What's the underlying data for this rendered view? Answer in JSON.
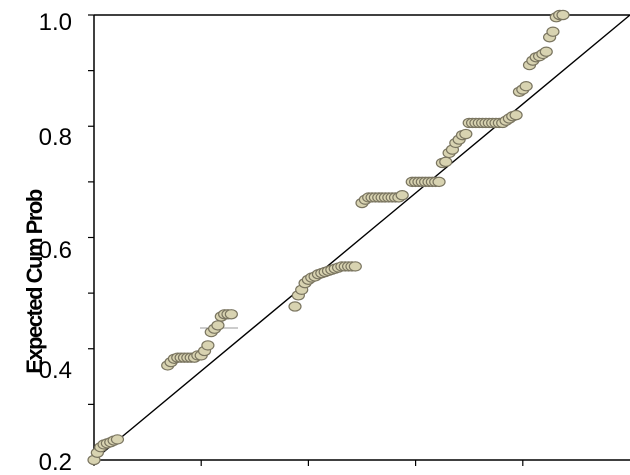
{
  "chart_data": {
    "type": "scatter",
    "title": "",
    "xlabel": "",
    "ylabel": "Expected Cum Prob",
    "ylim": [
      0.2,
      1.0
    ],
    "xlim": [
      0.2,
      1.0
    ],
    "y_ticks": [
      "0.2",
      "0.4",
      "0.6",
      "0.8",
      "1.0"
    ],
    "reference_line": {
      "from": [
        0.2,
        0.2
      ],
      "to": [
        1.0,
        1.0
      ]
    },
    "colors": {
      "point_fill": "#d8d3b1",
      "point_stroke": "#7a7560",
      "line": "#000000"
    },
    "points": [
      [
        0.2,
        0.2
      ],
      [
        0.205,
        0.213
      ],
      [
        0.21,
        0.223
      ],
      [
        0.215,
        0.228
      ],
      [
        0.22,
        0.23
      ],
      [
        0.225,
        0.232
      ],
      [
        0.23,
        0.235
      ],
      [
        0.235,
        0.237
      ],
      [
        0.31,
        0.37
      ],
      [
        0.315,
        0.376
      ],
      [
        0.32,
        0.382
      ],
      [
        0.325,
        0.384
      ],
      [
        0.33,
        0.384
      ],
      [
        0.335,
        0.384
      ],
      [
        0.34,
        0.384
      ],
      [
        0.345,
        0.384
      ],
      [
        0.35,
        0.384
      ],
      [
        0.355,
        0.388
      ],
      [
        0.36,
        0.388
      ],
      [
        0.365,
        0.396
      ],
      [
        0.37,
        0.406
      ],
      [
        0.375,
        0.43
      ],
      [
        0.38,
        0.436
      ],
      [
        0.385,
        0.442
      ],
      [
        0.39,
        0.458
      ],
      [
        0.395,
        0.462
      ],
      [
        0.4,
        0.462
      ],
      [
        0.405,
        0.462
      ],
      [
        0.5,
        0.476
      ],
      [
        0.505,
        0.496
      ],
      [
        0.51,
        0.506
      ],
      [
        0.515,
        0.518
      ],
      [
        0.52,
        0.524
      ],
      [
        0.525,
        0.528
      ],
      [
        0.53,
        0.53
      ],
      [
        0.535,
        0.534
      ],
      [
        0.54,
        0.536
      ],
      [
        0.545,
        0.538
      ],
      [
        0.55,
        0.54
      ],
      [
        0.555,
        0.542
      ],
      [
        0.56,
        0.544
      ],
      [
        0.565,
        0.546
      ],
      [
        0.57,
        0.548
      ],
      [
        0.575,
        0.548
      ],
      [
        0.58,
        0.548
      ],
      [
        0.585,
        0.548
      ],
      [
        0.59,
        0.548
      ],
      [
        0.6,
        0.662
      ],
      [
        0.605,
        0.668
      ],
      [
        0.61,
        0.672
      ],
      [
        0.615,
        0.672
      ],
      [
        0.62,
        0.672
      ],
      [
        0.625,
        0.672
      ],
      [
        0.63,
        0.672
      ],
      [
        0.635,
        0.672
      ],
      [
        0.64,
        0.672
      ],
      [
        0.645,
        0.672
      ],
      [
        0.65,
        0.672
      ],
      [
        0.655,
        0.672
      ],
      [
        0.66,
        0.676
      ],
      [
        0.675,
        0.7
      ],
      [
        0.68,
        0.7
      ],
      [
        0.685,
        0.7
      ],
      [
        0.69,
        0.7
      ],
      [
        0.695,
        0.7
      ],
      [
        0.7,
        0.7
      ],
      [
        0.705,
        0.7
      ],
      [
        0.71,
        0.7
      ],
      [
        0.715,
        0.7
      ],
      [
        0.72,
        0.734
      ],
      [
        0.725,
        0.736
      ],
      [
        0.73,
        0.752
      ],
      [
        0.735,
        0.758
      ],
      [
        0.74,
        0.77
      ],
      [
        0.745,
        0.776
      ],
      [
        0.75,
        0.784
      ],
      [
        0.755,
        0.786
      ],
      [
        0.76,
        0.806
      ],
      [
        0.765,
        0.806
      ],
      [
        0.77,
        0.806
      ],
      [
        0.775,
        0.806
      ],
      [
        0.78,
        0.806
      ],
      [
        0.785,
        0.806
      ],
      [
        0.79,
        0.806
      ],
      [
        0.795,
        0.806
      ],
      [
        0.8,
        0.806
      ],
      [
        0.805,
        0.806
      ],
      [
        0.81,
        0.806
      ],
      [
        0.815,
        0.81
      ],
      [
        0.82,
        0.814
      ],
      [
        0.825,
        0.818
      ],
      [
        0.83,
        0.82
      ],
      [
        0.835,
        0.862
      ],
      [
        0.84,
        0.866
      ],
      [
        0.845,
        0.872
      ],
      [
        0.85,
        0.91
      ],
      [
        0.855,
        0.918
      ],
      [
        0.86,
        0.924
      ],
      [
        0.865,
        0.926
      ],
      [
        0.87,
        0.93
      ],
      [
        0.875,
        0.934
      ],
      [
        0.88,
        0.96
      ],
      [
        0.885,
        0.97
      ],
      [
        0.89,
        0.996
      ],
      [
        0.895,
        1.0
      ],
      [
        0.9,
        1.0
      ]
    ]
  }
}
